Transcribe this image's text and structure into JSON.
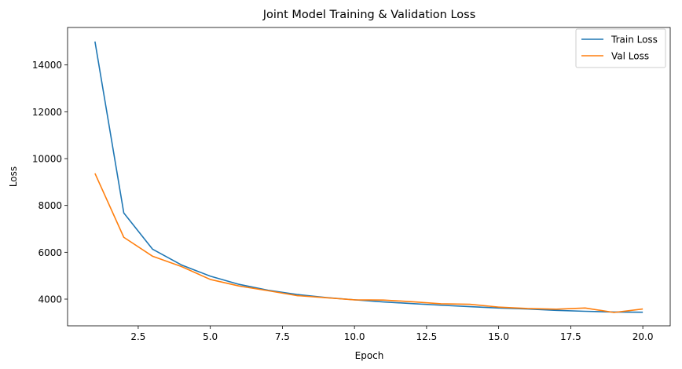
{
  "chart_data": {
    "type": "line",
    "title": "Joint Model Training & Validation Loss",
    "xlabel": "Epoch",
    "ylabel": "Loss",
    "xlim": [
      0.05,
      20.95
    ],
    "ylim": [
      2860,
      15600
    ],
    "x_ticks": [
      2.5,
      5.0,
      7.5,
      10.0,
      12.5,
      15.0,
      17.5,
      20.0
    ],
    "x_tick_labels": [
      "2.5",
      "5.0",
      "7.5",
      "10.0",
      "12.5",
      "15.0",
      "17.5",
      "20.0"
    ],
    "y_ticks": [
      4000,
      6000,
      8000,
      10000,
      12000,
      14000
    ],
    "y_tick_labels": [
      "4000",
      "6000",
      "8000",
      "10000",
      "12000",
      "14000"
    ],
    "grid": false,
    "legend_position": "top-right",
    "x": [
      1,
      2,
      3,
      4,
      5,
      6,
      7,
      8,
      9,
      10,
      11,
      12,
      13,
      14,
      15,
      16,
      17,
      18,
      19,
      20
    ],
    "series": [
      {
        "name": "Train Loss",
        "color": "#1f77b4",
        "values": [
          15000,
          7680,
          6130,
          5460,
          4980,
          4630,
          4380,
          4200,
          4070,
          3970,
          3880,
          3810,
          3740,
          3680,
          3620,
          3580,
          3520,
          3480,
          3450,
          3440
        ]
      },
      {
        "name": "Val Loss",
        "color": "#ff7f0e",
        "values": [
          9370,
          6640,
          5830,
          5390,
          4840,
          4560,
          4360,
          4150,
          4060,
          3970,
          3960,
          3890,
          3800,
          3780,
          3660,
          3600,
          3570,
          3620,
          3430,
          3580
        ]
      }
    ]
  }
}
